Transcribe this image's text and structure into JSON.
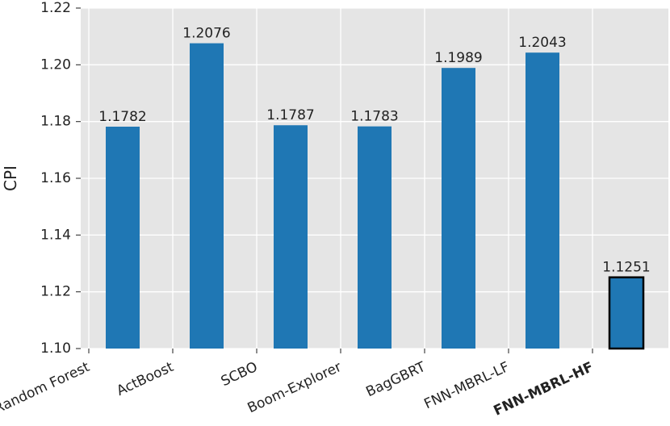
{
  "chart_data": {
    "type": "bar",
    "ylabel": "CPI",
    "categories": [
      "Random Forest",
      "ActBoost",
      "SCBO",
      "Boom-Explorer",
      "BagGBRT",
      "FNN-MBRL-LF",
      "FNN-MBRL-HF"
    ],
    "values": [
      1.1782,
      1.2076,
      1.1787,
      1.1783,
      1.1989,
      1.2043,
      1.1251
    ],
    "color": "#1f77b4",
    "highlight": 6,
    "ylim": [
      1.1,
      1.22
    ],
    "yticks": [
      {
        "value": 1.1,
        "label": "1.10"
      },
      {
        "value": 1.12,
        "label": "1.12"
      },
      {
        "value": 1.14,
        "label": "1.14"
      },
      {
        "value": 1.16,
        "label": "1.16"
      },
      {
        "value": 1.18,
        "label": "1.18"
      },
      {
        "value": 1.2,
        "label": "1.20"
      },
      {
        "value": 1.22,
        "label": "1.22"
      }
    ],
    "grid": true
  }
}
